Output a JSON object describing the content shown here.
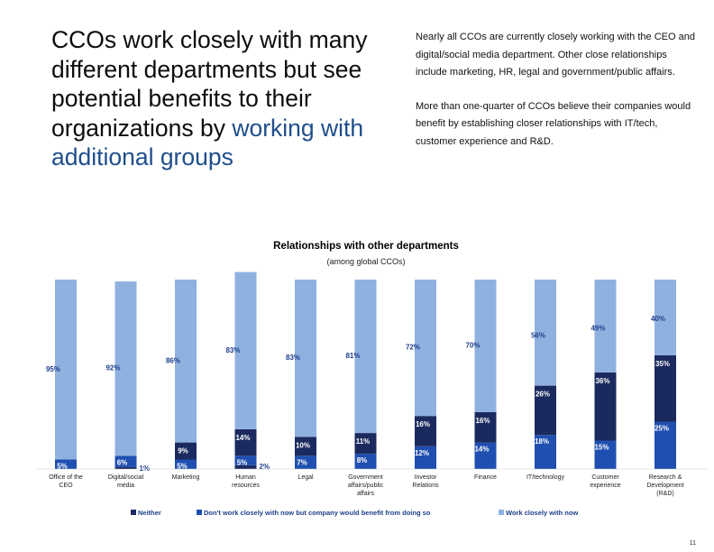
{
  "headline": {
    "text": "CCOs work closely with many different departments but see potential benefits to their organizations by ",
    "highlight": "working with additional groups"
  },
  "summary": [
    "Nearly all CCOs are currently closely working with the CEO and digital/social media department. Other close relationships include marketing, HR, legal and government/public affairs.",
    "More than one-quarter of CCOs believe their companies would benefit by establishing closer relationships with IT/tech, customer experience and R&D."
  ],
  "page_number": "11",
  "colors": {
    "neither": "#1b2a5e",
    "dont_work": "#1f4fb0",
    "work_closely": "#8fb1e0",
    "accent": "#1f4e8c"
  },
  "chart_data": {
    "type": "bar",
    "stacked": true,
    "percent_stacked": true,
    "title": "Relationships with other departments",
    "subtitle": "(among global CCOs)",
    "categories": [
      "Office of the CEO",
      "Digital/social media",
      "Marketing",
      "Human resources",
      "Legal",
      "Government affairs/public affairs",
      "Investor Relations",
      "Finance",
      "IT/technology",
      "Customer experience",
      "Research & Development (R&D)"
    ],
    "series": [
      {
        "name": "Neither",
        "color": "#1b2a5e",
        "values": [
          0,
          1,
          0,
          2,
          0,
          0,
          0,
          0,
          0,
          0,
          0
        ],
        "labels": [
          "",
          "1%",
          "",
          "2%",
          "",
          "",
          "",
          "",
          "",
          "",
          ""
        ]
      },
      {
        "name": "Don't work closely with now but company would benefit from doing so",
        "color": "#1f4fb0",
        "values": [
          5,
          6,
          5,
          5,
          7,
          8,
          12,
          14,
          18,
          15,
          25
        ],
        "labels": [
          "5%",
          "6%",
          "5%",
          "5%",
          "7%",
          "8%",
          "12%",
          "14%",
          "18%",
          "15%",
          "25%"
        ]
      },
      {
        "name": "Neither",
        "color": "#1b2a5e",
        "values": [
          0,
          0,
          9,
          14,
          10,
          11,
          16,
          16,
          26,
          36,
          35
        ],
        "labels": [
          "",
          "",
          "9%",
          "14%",
          "10%",
          "11%",
          "16%",
          "16%",
          "26%",
          "36%",
          "35%"
        ]
      },
      {
        "name": "Work closely with now",
        "color": "#8fb1e0",
        "values": [
          95,
          92,
          86,
          83,
          83,
          81,
          72,
          70,
          56,
          49,
          40
        ],
        "labels": [
          "95%",
          "92%",
          "86%",
          "83%",
          "83%",
          "81%",
          "72%",
          "70%",
          "56%",
          "49%",
          "40%"
        ]
      }
    ],
    "legend": [
      "Neither",
      "Don't work closely with now but company would benefit from doing so",
      "Work closely with now"
    ],
    "legend_position": "bottom",
    "ylim": [
      0,
      100
    ],
    "grid": false
  }
}
